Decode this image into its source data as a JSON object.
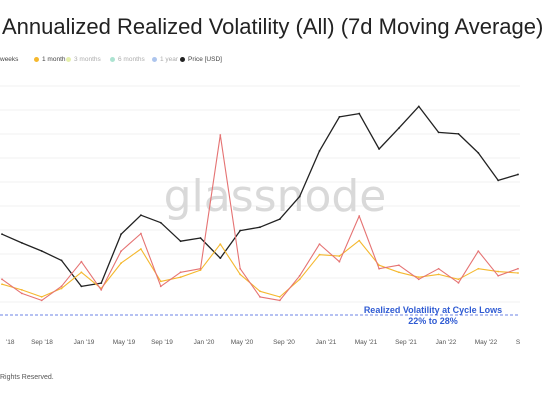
{
  "title": "Annualized Realized Volatility (All) (7d Moving Average)",
  "legend": [
    {
      "label": "weeks",
      "color": "#f4a6a6",
      "faded": false
    },
    {
      "label": "1 month",
      "color": "#f5b82e",
      "faded": false
    },
    {
      "label": "3 months",
      "color": "#c9e04a",
      "faded": true
    },
    {
      "label": "6 months",
      "color": "#49c39b",
      "faded": true
    },
    {
      "label": "1 year",
      "color": "#4c7fd9",
      "faded": true
    },
    {
      "label": "Price [USD]",
      "color": "#222222",
      "faded": false
    }
  ],
  "watermark": "glassnode",
  "annotation": {
    "line1": "Realized Volatility at Cycle Lows",
    "line2": "22% to 28%"
  },
  "footer": "Rights Reserved.",
  "chart_data": {
    "type": "line",
    "x_ticks": [
      "'18",
      "Sep '18",
      "Jan '19",
      "May '19",
      "Sep '19",
      "Jan '20",
      "May '20",
      "Sep '20",
      "Jan '21",
      "May '21",
      "Sep '21",
      "Jan '22",
      "May '22",
      "S"
    ],
    "x": [
      "2018-05",
      "2018-07",
      "2018-09",
      "2018-11",
      "2019-01",
      "2019-03",
      "2019-05",
      "2019-07",
      "2019-09",
      "2019-11",
      "2020-01",
      "2020-03",
      "2020-05",
      "2020-07",
      "2020-09",
      "2020-11",
      "2021-01",
      "2021-03",
      "2021-05",
      "2021-07",
      "2021-09",
      "2021-11",
      "2022-01",
      "2022-03",
      "2022-05",
      "2022-07",
      "2022-08"
    ],
    "log_scale": true,
    "grid": "horizontal",
    "series": [
      {
        "name": "Price [USD]",
        "color": "#222222",
        "values": [
          8500,
          7400,
          6500,
          5600,
          3700,
          3900,
          8500,
          11500,
          10200,
          7600,
          8000,
          5800,
          9000,
          9500,
          10800,
          15500,
          32000,
          55000,
          58000,
          33000,
          46000,
          65000,
          43000,
          42000,
          31000,
          20000,
          22000
        ]
      },
      {
        "name": "1 month",
        "color": "#f5b82e",
        "values": [
          48,
          40,
          30,
          42,
          65,
          42,
          78,
          98,
          52,
          58,
          68,
          105,
          62,
          38,
          30,
          55,
          90,
          88,
          110,
          75,
          65,
          58,
          62,
          55,
          70,
          66,
          64
        ]
      },
      {
        "name": "weeks",
        "color": "#e57373",
        "values": [
          55,
          35,
          25,
          45,
          80,
          40,
          95,
          120,
          45,
          65,
          70,
          260,
          70,
          30,
          25,
          60,
          105,
          80,
          145,
          70,
          75,
          55,
          70,
          50,
          95,
          60,
          70
        ]
      }
    ]
  }
}
